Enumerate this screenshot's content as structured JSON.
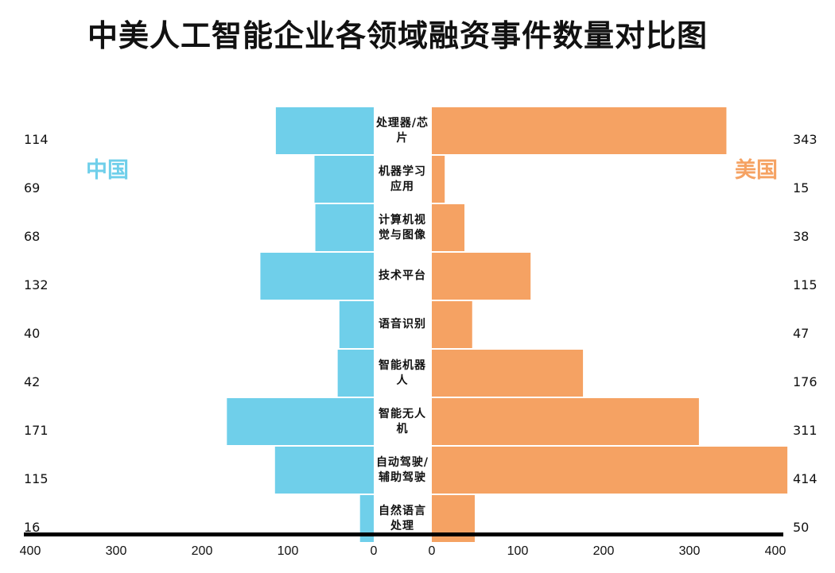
{
  "chart_data": {
    "type": "bar",
    "orientation": "horizontal-butterfly",
    "title": "中美人工智能企业各领域融资事件数量对比图",
    "categories": [
      "处理器/芯片",
      "机器学习应用",
      "计算机视觉与图像",
      "技术平台",
      "语音识别",
      "智能机器人",
      "智能无人机",
      "自动驾驶/辅助驾驶",
      "自然语言处理"
    ],
    "series": [
      {
        "name": "中国",
        "color": "#6fcfea",
        "values": [
          114,
          69,
          68,
          132,
          40,
          42,
          171,
          115,
          16
        ]
      },
      {
        "name": "美国",
        "color": "#f5a263",
        "values": [
          343,
          15,
          38,
          115,
          47,
          176,
          311,
          414,
          50
        ]
      }
    ],
    "xlim": [
      0,
      400
    ],
    "ticks_left": [
      "400",
      "300",
      "200",
      "100",
      "0"
    ],
    "ticks_right": [
      "0",
      "100",
      "200",
      "300",
      "400"
    ]
  }
}
